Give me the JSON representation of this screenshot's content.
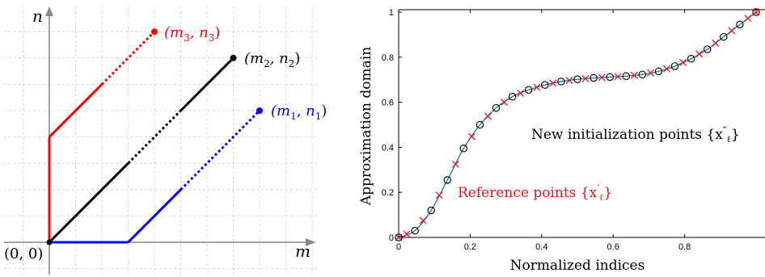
{
  "chart_data": [
    {
      "type": "line",
      "title": "",
      "xlabel": "m",
      "ylabel": "n",
      "origin_label": "(0, 0)",
      "grid": true,
      "xlim": [
        0,
        8
      ],
      "ylim": [
        0,
        9
      ],
      "series": [
        {
          "name": "(m_3, n_3)",
          "color": "#ff0000",
          "x": [
            0,
            0,
            1,
            2,
            4
          ],
          "y": [
            0,
            4,
            5,
            6,
            8
          ],
          "dotted_segment": 3
        },
        {
          "name": "(m_2, n_2)",
          "color": "#000000",
          "x": [
            0,
            3,
            5,
            7
          ],
          "y": [
            0,
            3,
            5,
            7
          ],
          "dotted_segment": 1
        },
        {
          "name": "(m_1, n_1)",
          "color": "#0000ff",
          "x": [
            0,
            3,
            5,
            8
          ],
          "y": [
            0,
            0,
            2,
            5
          ],
          "dotted_segment": 2
        }
      ],
      "annotations": [
        {
          "text": "(m",
          "sub": "3",
          "mid": ", n",
          "sub2": "3",
          "end": ")",
          "series": 0
        },
        {
          "text": "(m",
          "sub": "2",
          "mid": ", n",
          "sub2": "2",
          "end": ")",
          "series": 1
        },
        {
          "text": "(m",
          "sub": "1",
          "mid": ", n",
          "sub2": "1",
          "end": ")",
          "series": 2
        }
      ]
    },
    {
      "type": "line",
      "title": "",
      "xlabel": "Normalized indices",
      "ylabel": "Approximation domain",
      "xlim": [
        0,
        1
      ],
      "ylim": [
        0,
        1
      ],
      "xticks": [
        "0",
        "0.2",
        "0.4",
        "0.6",
        "0.8"
      ],
      "xtick_values": [
        0,
        0.2,
        0.4,
        0.6,
        0.8
      ],
      "yticks": [
        "0",
        "0.2",
        "0.4",
        "0.6",
        "0.8",
        "1"
      ],
      "ytick_values": [
        0,
        0.2,
        0.4,
        0.6,
        0.8,
        1
      ],
      "grid": false,
      "series": [
        {
          "name": "Reference points {x'_ℓ}",
          "color": "#e8141e",
          "marker": "x",
          "x": [
            0,
            0.0455,
            0.0909,
            0.1364,
            0.1818,
            0.2273,
            0.2727,
            0.3182,
            0.3636,
            0.4091,
            0.4545,
            0.5,
            0.5455,
            0.5909,
            0.6364,
            0.6818,
            0.7273,
            0.7727,
            0.8182,
            0.8636,
            0.9091,
            0.9545,
            1
          ],
          "y": [
            0.0,
            0.03,
            0.12,
            0.255,
            0.395,
            0.5,
            0.575,
            0.625,
            0.655,
            0.677,
            0.692,
            0.702,
            0.708,
            0.712,
            0.716,
            0.723,
            0.737,
            0.76,
            0.793,
            0.835,
            0.89,
            0.945,
            1.0
          ]
        },
        {
          "name": "New initialization points {x''_ℓ}",
          "color": "#000000",
          "marker": "o",
          "x": [
            0,
            0.0455,
            0.0909,
            0.1364,
            0.1818,
            0.2273,
            0.2727,
            0.3182,
            0.3636,
            0.4091,
            0.4545,
            0.5,
            0.5455,
            0.5909,
            0.6364,
            0.6818,
            0.7273,
            0.7727,
            0.8182,
            0.8636,
            0.9091,
            0.9545,
            1
          ],
          "y": [
            0.0,
            0.03,
            0.12,
            0.255,
            0.395,
            0.5,
            0.575,
            0.625,
            0.655,
            0.677,
            0.692,
            0.702,
            0.708,
            0.712,
            0.716,
            0.723,
            0.737,
            0.76,
            0.793,
            0.835,
            0.89,
            0.945,
            1.0
          ]
        }
      ],
      "curve_color": "#1a6fb3",
      "annotations": [
        {
          "text": "New initialization points {x",
          "prime": "″",
          "sub": "ℓ",
          "end": "}",
          "color": "#000000"
        },
        {
          "text": "Reference points {x",
          "prime": "′",
          "sub": "ℓ",
          "end": "}",
          "color": "#e8141e"
        }
      ]
    }
  ]
}
